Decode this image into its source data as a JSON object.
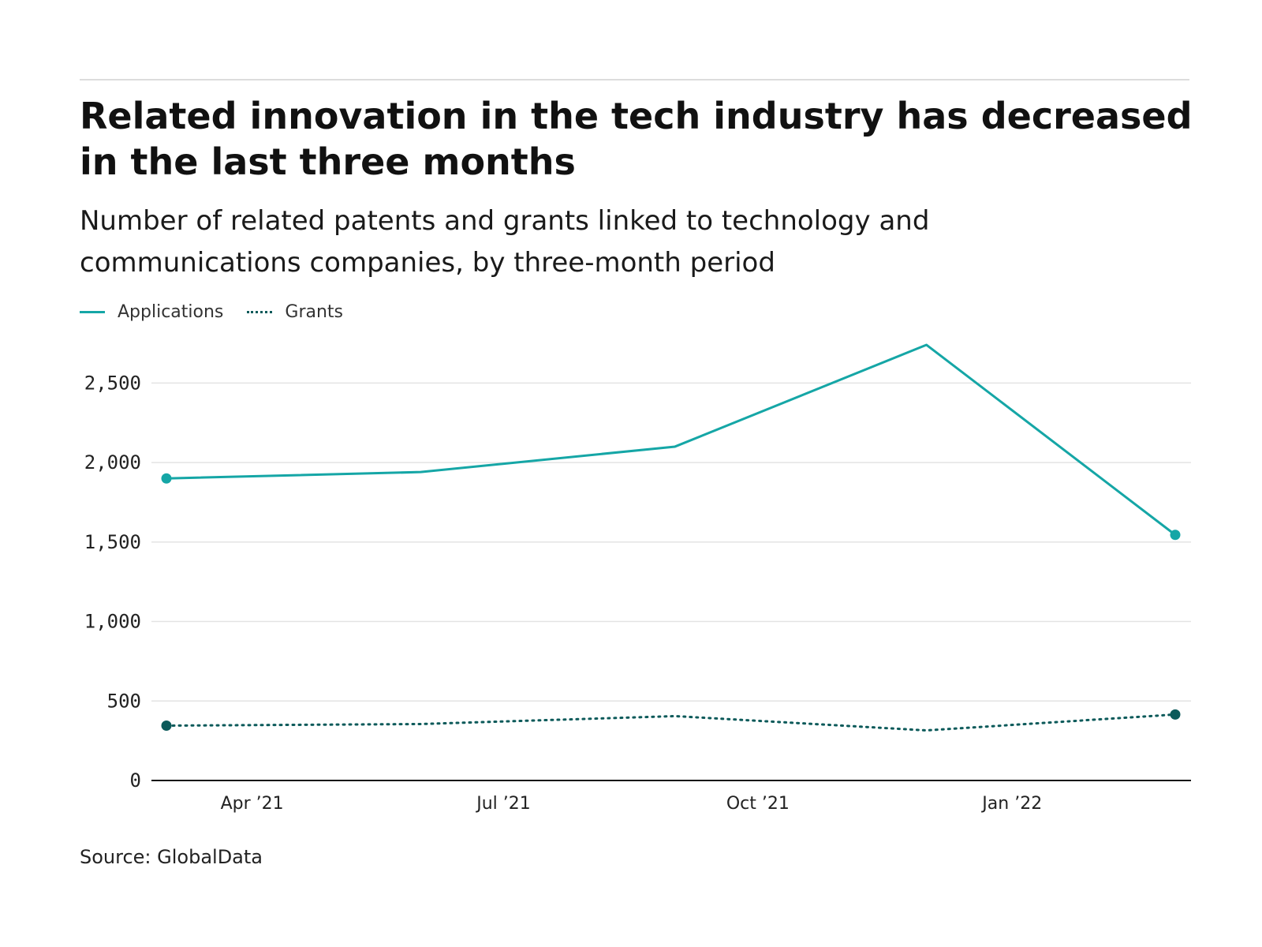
{
  "title": "Related innovation in the tech industry has decreased in the last three months",
  "subtitle": "Number of related patents and grants linked to technology and communications companies, by three-month period",
  "source": "Source: GlobalData",
  "legend": [
    {
      "label": "Applications",
      "style": "solid",
      "color": "#15a6a6"
    },
    {
      "label": "Grants",
      "style": "dotted",
      "color": "#0c5a5a"
    }
  ],
  "chart_data": {
    "type": "line",
    "title": "Related innovation in the tech industry has decreased in the last three months",
    "subtitle": "Number of related patents and grants linked to technology and communications companies, by three-month period",
    "x": [
      "2021-03-01",
      "2021-06-01",
      "2021-09-01",
      "2021-12-01",
      "2022-03-01"
    ],
    "x_tick_values": [
      "2021-04-01",
      "2021-07-01",
      "2021-10-01",
      "2022-01-01"
    ],
    "x_tick_labels": [
      "Apr ’21",
      "Jul ’21",
      "Oct ’21",
      "Jan ’22"
    ],
    "series": [
      {
        "name": "Applications",
        "values": [
          1900,
          1940,
          2100,
          2740,
          1545
        ],
        "color": "#15a6a6",
        "style": "solid"
      },
      {
        "name": "Grants",
        "values": [
          345,
          355,
          405,
          315,
          415
        ],
        "color": "#0c5a5a",
        "style": "dotted"
      }
    ],
    "ylim": [
      0,
      2750
    ],
    "y_ticks": [
      0,
      500,
      1000,
      1500,
      2000,
      2500
    ],
    "y_tick_labels": [
      "0",
      "500",
      "1,000",
      "1,500",
      "2,000",
      "2,500"
    ],
    "xlabel": "",
    "ylabel": "",
    "grid": true,
    "legend_position": "top-left"
  }
}
